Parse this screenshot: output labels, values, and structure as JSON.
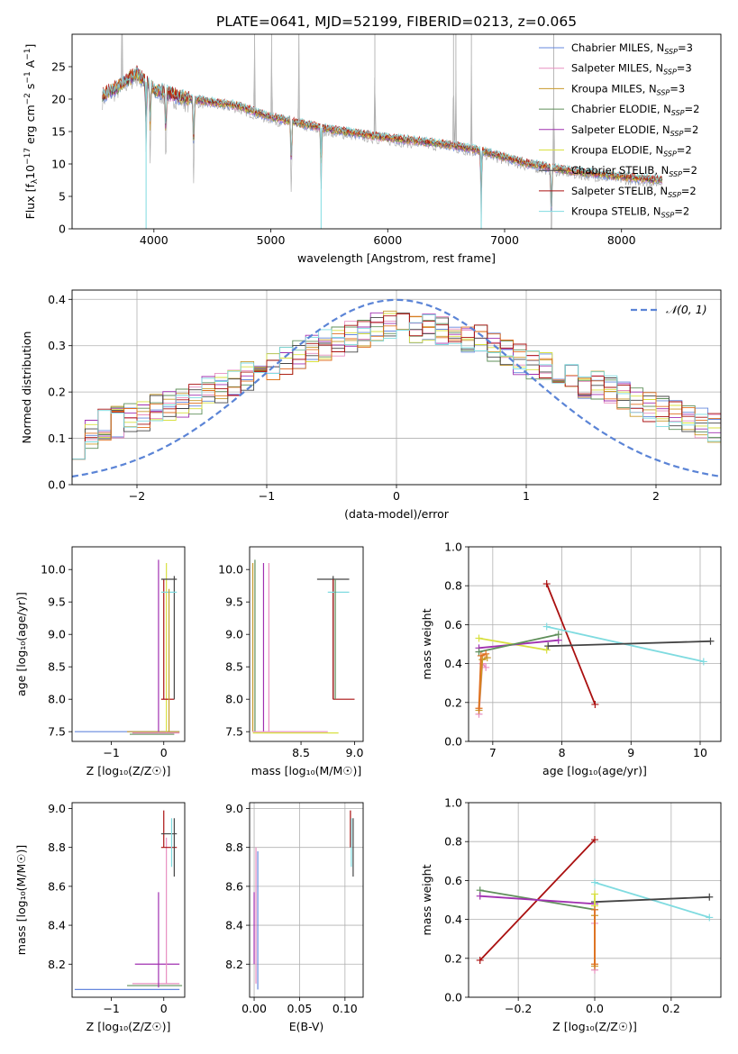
{
  "figure": {
    "title": "PLATE=0641, MJD=52199, FIBERID=0213, z=0.065"
  },
  "colors": {
    "chabrier_miles": "#6688dd",
    "salpeter_miles": "#e88fc0",
    "kroupa_miles": "#c89a2a",
    "chabrier_elodie": "#5f8f5a",
    "salpeter_elodie": "#a030b0",
    "kroupa_elodie": "#d8e040",
    "chabrier_stelib": "#444444",
    "salpeter_stelib": "#aa1010",
    "kroupa_stelib": "#7fdbe0",
    "observed": "#888888",
    "orange": "#e07020",
    "normal_curve": "#5b84d6",
    "grid": "#b0b0b0"
  },
  "chart_data": [
    {
      "id": "spectrum",
      "type": "line",
      "xlabel": "wavelength [Angstrom, rest frame]",
      "ylabel_main": "Flux [f",
      "ylabel_sub": "λ",
      "ylabel_rest": "10",
      "ylabel_exp": "−17",
      "ylabel_tail": " erg cm",
      "ylabel_exp2": "−2",
      "ylabel_tail2": " s",
      "ylabel_exp3": "−1",
      "ylabel_tail3": " A",
      "ylabel_exp4": "−1",
      "ylabel_end": "]",
      "xlim": [
        3300,
        8850
      ],
      "ylim": [
        0,
        30
      ],
      "xticks": [
        4000,
        5000,
        6000,
        7000,
        8000
      ],
      "yticks": [
        0,
        5,
        10,
        15,
        20,
        25
      ],
      "continuum": [
        [
          3560,
          20.5
        ],
        [
          3700,
          22.0
        ],
        [
          3850,
          24.0
        ],
        [
          4000,
          21.5
        ],
        [
          4300,
          20.0
        ],
        [
          4700,
          19.0
        ],
        [
          5000,
          17.2
        ],
        [
          5500,
          15.3
        ],
        [
          6000,
          14.0
        ],
        [
          6500,
          13.0
        ],
        [
          6800,
          12.0
        ],
        [
          7200,
          10.0
        ],
        [
          7600,
          8.8
        ],
        [
          8000,
          8.0
        ],
        [
          8300,
          7.5
        ]
      ],
      "emission_lines": [
        3727,
        4861,
        5007,
        5240,
        5890,
        6563,
        6583,
        6716,
        7420
      ],
      "absorption_lines": [
        3933,
        3968,
        4102,
        4340,
        5175,
        5430,
        6800,
        7400
      ],
      "legend": [
        {
          "key": "chabrier_miles",
          "label": "Chabrier MILES, N",
          "sub": "SSP",
          "tail": "=3"
        },
        {
          "key": "salpeter_miles",
          "label": "Salpeter MILES, N",
          "sub": "SSP",
          "tail": "=3"
        },
        {
          "key": "kroupa_miles",
          "label": "Kroupa MILES, N",
          "sub": "SSP",
          "tail": "=3"
        },
        {
          "key": "chabrier_elodie",
          "label": "Chabrier ELODIE, N",
          "sub": "SSP",
          "tail": "=2"
        },
        {
          "key": "salpeter_elodie",
          "label": "Salpeter ELODIE, N",
          "sub": "SSP",
          "tail": "=2"
        },
        {
          "key": "kroupa_elodie",
          "label": "Kroupa ELODIE, N",
          "sub": "SSP",
          "tail": "=2"
        },
        {
          "key": "chabrier_stelib",
          "label": "Chabrier STELIB, N",
          "sub": "SSP",
          "tail": "=2"
        },
        {
          "key": "salpeter_stelib",
          "label": "Salpeter STELIB, N",
          "sub": "SSP",
          "tail": "=2"
        },
        {
          "key": "kroupa_stelib",
          "label": "Kroupa STELIB, N",
          "sub": "SSP",
          "tail": "=2"
        }
      ]
    },
    {
      "id": "residuals",
      "type": "histogram",
      "xlabel": "(data-model)/error",
      "ylabel": "Normed distribution",
      "xlim": [
        -2.5,
        2.5
      ],
      "ylim": [
        0,
        0.42
      ],
      "xticks": [
        -2,
        -1,
        0,
        1,
        2
      ],
      "yticks": [
        0.0,
        0.1,
        0.2,
        0.3,
        0.4
      ],
      "bin_width": 0.1,
      "bin_start": -2.5,
      "envelope": [
        0.09,
        0.11,
        0.13,
        0.135,
        0.14,
        0.15,
        0.16,
        0.17,
        0.18,
        0.185,
        0.2,
        0.21,
        0.22,
        0.235,
        0.25,
        0.26,
        0.27,
        0.28,
        0.29,
        0.3,
        0.31,
        0.32,
        0.33,
        0.34,
        0.345,
        0.35,
        0.34,
        0.335,
        0.33,
        0.325,
        0.32,
        0.31,
        0.3,
        0.29,
        0.27,
        0.26,
        0.25,
        0.24,
        0.23,
        0.22,
        0.21,
        0.2,
        0.19,
        0.18,
        0.17,
        0.16,
        0.15,
        0.14,
        0.13,
        0.12,
        0.11,
        0.1,
        0.095,
        0.09,
        0.085,
        0.075,
        0.065,
        0.055,
        0.045,
        0.035
      ],
      "normal_label": "𝒩(0, 1)",
      "normal_mean": 0,
      "normal_sigma": 1
    },
    {
      "id": "age_vs_Z",
      "type": "errorbar",
      "xlabel": "Z [log₁₀(Z/Z☉)]",
      "ylabel": "age  [log₁₀(age/yr)]",
      "xlim": [
        -1.75,
        0.4
      ],
      "ylim": [
        7.35,
        10.35
      ],
      "xticks": [
        -1,
        0
      ],
      "yticks": [
        7.5,
        8.0,
        8.5,
        9.0,
        9.5,
        10.0
      ],
      "segments": [
        {
          "key": "chabrier_miles",
          "x": [
            -1.7,
            0.3
          ],
          "y": [
            7.5,
            7.5
          ]
        },
        {
          "key": "kroupa_miles",
          "x": [
            -0.7,
            0.3
          ],
          "y": [
            7.5,
            7.5
          ]
        },
        {
          "key": "salpeter_miles",
          "x": [
            -0.6,
            0.3
          ],
          "y": [
            7.48,
            7.48
          ]
        },
        {
          "key": "chabrier_elodie",
          "x": [
            -0.65,
            0.2
          ],
          "y": [
            7.46,
            7.46
          ]
        },
        {
          "key": "salpeter_elodie",
          "x": [
            -0.1,
            -0.1
          ],
          "y": [
            7.5,
            10.15
          ]
        },
        {
          "key": "kroupa_elodie",
          "x": [
            0.05,
            0.05
          ],
          "y": [
            7.5,
            10.1
          ]
        },
        {
          "key": "salpeter_stelib",
          "x": [
            0.0,
            0.0
          ],
          "y": [
            8.0,
            9.85
          ]
        },
        {
          "key": "salpeter_stelib",
          "x": [
            -0.05,
            0.2
          ],
          "y": [
            8.0,
            8.0
          ]
        },
        {
          "key": "chabrier_stelib",
          "x": [
            0.2,
            0.2
          ],
          "y": [
            8.0,
            9.9
          ]
        },
        {
          "key": "chabrier_stelib",
          "x": [
            -0.05,
            0.25
          ],
          "y": [
            9.85,
            9.85
          ]
        },
        {
          "key": "kroupa_stelib",
          "x": [
            -0.05,
            0.25
          ],
          "y": [
            9.65,
            9.65
          ]
        },
        {
          "key": "kroupa_miles",
          "x": [
            0.1,
            0.1
          ],
          "y": [
            7.5,
            9.7
          ]
        }
      ]
    },
    {
      "id": "age_vs_mass",
      "type": "errorbar",
      "xlabel": "mass [log₁₀(M/M☉)]",
      "ylabel": "",
      "xlim": [
        8.02,
        9.08
      ],
      "ylim": [
        7.35,
        10.35
      ],
      "xticks": [
        8.5,
        9.0
      ],
      "yticks": [
        7.5,
        8.0,
        8.5,
        9.0,
        9.5,
        10.0
      ],
      "segments": [
        {
          "key": "kroupa_miles",
          "x": [
            8.05,
            8.05
          ],
          "y": [
            7.5,
            10.1
          ]
        },
        {
          "key": "chabrier_elodie",
          "x": [
            8.07,
            8.07
          ],
          "y": [
            7.5,
            10.15
          ]
        },
        {
          "key": "salpeter_elodie",
          "x": [
            8.15,
            8.15
          ],
          "y": [
            7.5,
            10.1
          ]
        },
        {
          "key": "salpeter_miles",
          "x": [
            8.2,
            8.2
          ],
          "y": [
            7.5,
            10.1
          ]
        },
        {
          "key": "salpeter_miles",
          "x": [
            8.05,
            8.75
          ],
          "y": [
            7.5,
            7.5
          ]
        },
        {
          "key": "kroupa_elodie",
          "x": [
            8.05,
            8.85
          ],
          "y": [
            7.48,
            7.48
          ]
        },
        {
          "key": "chabrier_stelib",
          "x": [
            8.8,
            8.8
          ],
          "y": [
            8.0,
            9.9
          ]
        },
        {
          "key": "chabrier_stelib",
          "x": [
            8.65,
            8.95
          ],
          "y": [
            9.85,
            9.85
          ]
        },
        {
          "key": "salpeter_stelib",
          "x": [
            8.8,
            9.0
          ],
          "y": [
            8.0,
            8.0
          ]
        },
        {
          "key": "salpeter_stelib",
          "x": [
            8.8,
            8.8
          ],
          "y": [
            8.0,
            9.85
          ]
        },
        {
          "key": "kroupa_stelib",
          "x": [
            8.75,
            8.95
          ],
          "y": [
            9.65,
            9.65
          ]
        },
        {
          "key": "chabrier_elodie",
          "x": [
            8.82,
            8.82
          ],
          "y": [
            8.0,
            9.85
          ]
        }
      ]
    },
    {
      "id": "weight_vs_age",
      "type": "line",
      "xlabel": "age  [log₁₀(age/yr)]",
      "ylabel": "mass weight",
      "xlim": [
        6.65,
        10.3
      ],
      "ylim": [
        0,
        1.0
      ],
      "xticks": [
        7,
        8,
        9,
        10
      ],
      "yticks": [
        0.0,
        0.2,
        0.4,
        0.6,
        0.8,
        1.0
      ],
      "series": [
        {
          "key": "salpeter_stelib",
          "x": [
            7.78,
            8.48
          ],
          "y": [
            0.81,
            0.19
          ]
        },
        {
          "key": "kroupa_stelib",
          "x": [
            7.78,
            10.05
          ],
          "y": [
            0.59,
            0.41
          ]
        },
        {
          "key": "chabrier_stelib",
          "x": [
            7.8,
            10.15
          ],
          "y": [
            0.49,
            0.515
          ]
        },
        {
          "key": "kroupa_elodie",
          "x": [
            6.8,
            7.78
          ],
          "y": [
            0.53,
            0.47
          ]
        },
        {
          "key": "salpeter_elodie",
          "x": [
            6.8,
            7.95
          ],
          "y": [
            0.48,
            0.52
          ]
        },
        {
          "key": "chabrier_elodie",
          "x": [
            6.8,
            7.95
          ],
          "y": [
            0.46,
            0.55
          ]
        },
        {
          "key": "salpeter_miles",
          "x": [
            6.8,
            6.85,
            6.9
          ],
          "y": [
            0.14,
            0.4,
            0.38
          ]
        },
        {
          "key": "kroupa_miles",
          "x": [
            6.8,
            6.85,
            6.92
          ],
          "y": [
            0.16,
            0.42,
            0.43
          ]
        },
        {
          "key": "orange",
          "x": [
            6.8,
            6.83,
            6.9
          ],
          "y": [
            0.17,
            0.44,
            0.45
          ]
        }
      ]
    },
    {
      "id": "mass_vs_Z",
      "type": "errorbar",
      "xlabel": "Z [log₁₀(Z/Z☉)]",
      "ylabel": "mass [log₁₀(M/M☉)]",
      "xlim": [
        -1.75,
        0.4
      ],
      "ylim": [
        8.03,
        9.03
      ],
      "xticks": [
        -1,
        0
      ],
      "yticks": [
        8.2,
        8.4,
        8.6,
        8.8,
        9.0
      ],
      "segments": [
        {
          "key": "chabrier_miles",
          "x": [
            -1.7,
            0.3
          ],
          "y": [
            8.07,
            8.07
          ]
        },
        {
          "key": "chabrier_elodie",
          "x": [
            -0.7,
            0.35
          ],
          "y": [
            8.09,
            8.09
          ]
        },
        {
          "key": "salpeter_miles",
          "x": [
            -0.6,
            0.3
          ],
          "y": [
            8.1,
            8.1
          ]
        },
        {
          "key": "salpeter_elodie",
          "x": [
            -0.1,
            -0.1
          ],
          "y": [
            8.08,
            8.57
          ]
        },
        {
          "key": "salpeter_elodie",
          "x": [
            -0.55,
            0.3
          ],
          "y": [
            8.2,
            8.2
          ]
        },
        {
          "key": "salpeter_miles",
          "x": [
            0.05,
            0.05
          ],
          "y": [
            8.1,
            8.85
          ]
        },
        {
          "key": "salpeter_stelib",
          "x": [
            0.0,
            0.0
          ],
          "y": [
            8.8,
            8.99
          ]
        },
        {
          "key": "salpeter_stelib",
          "x": [
            -0.05,
            0.25
          ],
          "y": [
            8.8,
            8.8
          ]
        },
        {
          "key": "chabrier_stelib",
          "x": [
            0.2,
            0.2
          ],
          "y": [
            8.65,
            8.95
          ]
        },
        {
          "key": "chabrier_stelib",
          "x": [
            -0.05,
            0.25
          ],
          "y": [
            8.87,
            8.87
          ]
        },
        {
          "key": "kroupa_stelib",
          "x": [
            0.15,
            0.15
          ],
          "y": [
            8.7,
            8.95
          ]
        }
      ]
    },
    {
      "id": "mass_vs_ebv",
      "type": "errorbar",
      "xlabel": "E(B-V)",
      "ylabel": "",
      "xlim": [
        -0.005,
        0.12
      ],
      "ylim": [
        8.03,
        9.03
      ],
      "xticks": [
        0.0,
        0.05,
        0.1
      ],
      "xtick_labels": [
        "0.00",
        "0.05",
        "0.10"
      ],
      "yticks": [
        8.2,
        8.4,
        8.6,
        8.8,
        9.0
      ],
      "segments": [
        {
          "key": "salpeter_elodie",
          "x": [
            0.0,
            0.0
          ],
          "y": [
            8.2,
            8.57
          ]
        },
        {
          "key": "salpeter_miles",
          "x": [
            0.002,
            0.002
          ],
          "y": [
            8.1,
            8.8
          ]
        },
        {
          "key": "chabrier_miles",
          "x": [
            0.004,
            0.004
          ],
          "y": [
            8.07,
            8.78
          ]
        },
        {
          "key": "salpeter_stelib",
          "x": [
            0.106,
            0.106
          ],
          "y": [
            8.8,
            8.99
          ]
        },
        {
          "key": "chabrier_stelib",
          "x": [
            0.109,
            0.109
          ],
          "y": [
            8.65,
            8.95
          ]
        },
        {
          "key": "kroupa_stelib",
          "x": [
            0.107,
            0.107
          ],
          "y": [
            8.7,
            8.95
          ]
        }
      ]
    },
    {
      "id": "weight_vs_Z",
      "type": "line",
      "xlabel": "Z [log₁₀(Z/Z☉)]",
      "ylabel": "mass weight",
      "xlim": [
        -0.33,
        0.33
      ],
      "ylim": [
        0,
        1.0
      ],
      "xticks": [
        -0.2,
        0.0,
        0.2
      ],
      "xtick_labels": [
        "−0.2",
        "0.0",
        "0.2"
      ],
      "yticks": [
        0.0,
        0.2,
        0.4,
        0.6,
        0.8,
        1.0
      ],
      "series": [
        {
          "key": "salpeter_stelib",
          "x": [
            -0.3,
            0.0
          ],
          "y": [
            0.19,
            0.81
          ]
        },
        {
          "key": "kroupa_stelib",
          "x": [
            0.0,
            0.3
          ],
          "y": [
            0.59,
            0.41
          ]
        },
        {
          "key": "chabrier_stelib",
          "x": [
            0.0,
            0.3
          ],
          "y": [
            0.49,
            0.515
          ]
        },
        {
          "key": "chabrier_elodie",
          "x": [
            -0.3,
            0.0
          ],
          "y": [
            0.55,
            0.45
          ]
        },
        {
          "key": "salpeter_elodie",
          "x": [
            -0.3,
            0.0
          ],
          "y": [
            0.52,
            0.48
          ]
        },
        {
          "key": "kroupa_elodie",
          "x": [
            0.0,
            0.0
          ],
          "y": [
            0.47,
            0.53
          ]
        },
        {
          "key": "salpeter_miles",
          "x": [
            0.0,
            0.0
          ],
          "y": [
            0.14,
            0.38
          ]
        },
        {
          "key": "kroupa_miles",
          "x": [
            0.0,
            0.0
          ],
          "y": [
            0.16,
            0.42
          ]
        },
        {
          "key": "orange",
          "x": [
            0.0,
            0.0
          ],
          "y": [
            0.17,
            0.45
          ]
        }
      ]
    }
  ]
}
